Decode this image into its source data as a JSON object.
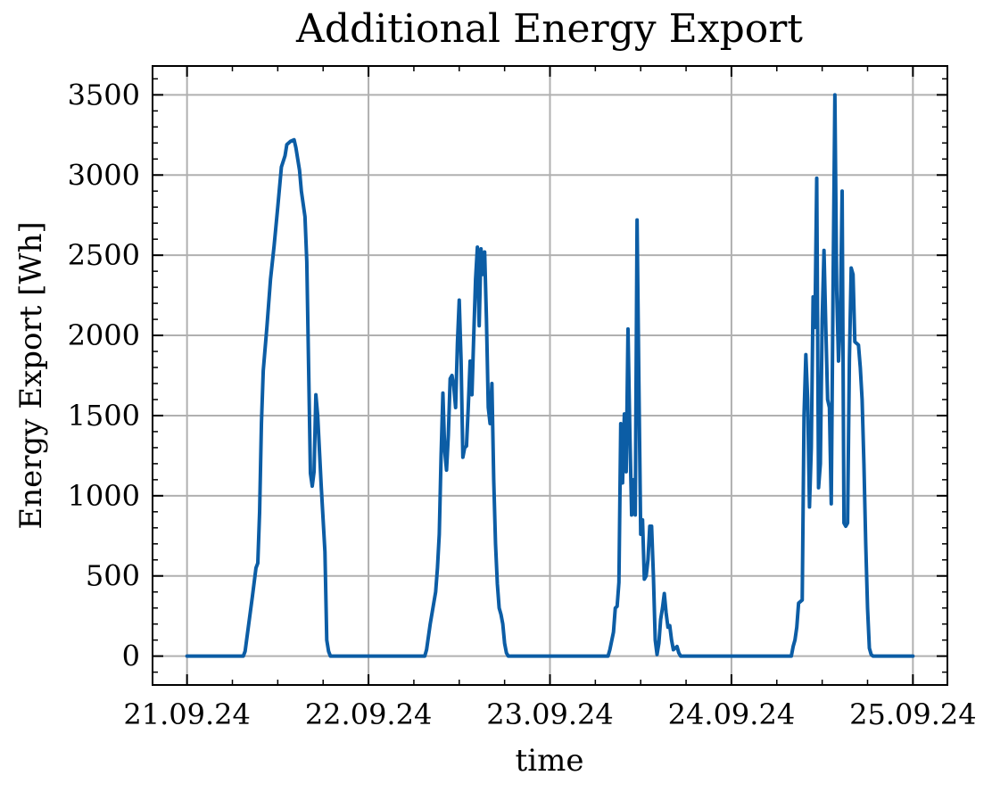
{
  "chart_data": {
    "type": "line",
    "title": "Additional Energy Export",
    "xlabel": "time",
    "ylabel": "Energy Export [Wh]",
    "x_unit": "days since 21.09.24 00:00",
    "xlim": [
      -0.19,
      4.19
    ],
    "ylim": [
      -180,
      3680
    ],
    "x_ticks": [
      {
        "value": 0,
        "label": "21.09.24"
      },
      {
        "value": 1,
        "label": "22.09.24"
      },
      {
        "value": 2,
        "label": "23.09.24"
      },
      {
        "value": 3,
        "label": "24.09.24"
      },
      {
        "value": 4,
        "label": "25.09.24"
      }
    ],
    "y_ticks": [
      {
        "value": 0,
        "label": "0"
      },
      {
        "value": 500,
        "label": "500"
      },
      {
        "value": 1000,
        "label": "1000"
      },
      {
        "value": 1500,
        "label": "1500"
      },
      {
        "value": 2000,
        "label": "2000"
      },
      {
        "value": 2500,
        "label": "2500"
      },
      {
        "value": 3000,
        "label": "3000"
      },
      {
        "value": 3500,
        "label": "3500"
      }
    ],
    "grid": true,
    "series": [
      {
        "color": "#0c5da5",
        "points": [
          [
            0.0,
            0
          ],
          [
            0.31,
            0
          ],
          [
            0.32,
            30
          ],
          [
            0.34,
            200
          ],
          [
            0.36,
            370
          ],
          [
            0.38,
            550
          ],
          [
            0.39,
            580
          ],
          [
            0.4,
            900
          ],
          [
            0.41,
            1450
          ],
          [
            0.42,
            1780
          ],
          [
            0.44,
            2050
          ],
          [
            0.46,
            2350
          ],
          [
            0.48,
            2560
          ],
          [
            0.5,
            2800
          ],
          [
            0.52,
            3050
          ],
          [
            0.54,
            3120
          ],
          [
            0.55,
            3190
          ],
          [
            0.57,
            3210
          ],
          [
            0.59,
            3220
          ],
          [
            0.6,
            3170
          ],
          [
            0.62,
            3030
          ],
          [
            0.63,
            2900
          ],
          [
            0.65,
            2740
          ],
          [
            0.66,
            2460
          ],
          [
            0.67,
            1800
          ],
          [
            0.68,
            1140
          ],
          [
            0.69,
            1060
          ],
          [
            0.7,
            1150
          ],
          [
            0.71,
            1630
          ],
          [
            0.72,
            1500
          ],
          [
            0.74,
            1050
          ],
          [
            0.76,
            650
          ],
          [
            0.77,
            100
          ],
          [
            0.78,
            30
          ],
          [
            0.79,
            0
          ],
          [
            1.31,
            0
          ],
          [
            1.32,
            40
          ],
          [
            1.34,
            200
          ],
          [
            1.37,
            400
          ],
          [
            1.38,
            550
          ],
          [
            1.39,
            760
          ],
          [
            1.4,
            1250
          ],
          [
            1.41,
            1640
          ],
          [
            1.42,
            1280
          ],
          [
            1.43,
            1160
          ],
          [
            1.44,
            1380
          ],
          [
            1.45,
            1730
          ],
          [
            1.46,
            1750
          ],
          [
            1.47,
            1680
          ],
          [
            1.48,
            1550
          ],
          [
            1.49,
            1950
          ],
          [
            1.5,
            2220
          ],
          [
            1.51,
            1850
          ],
          [
            1.52,
            1240
          ],
          [
            1.53,
            1300
          ],
          [
            1.54,
            1310
          ],
          [
            1.55,
            1560
          ],
          [
            1.56,
            1840
          ],
          [
            1.57,
            1630
          ],
          [
            1.58,
            2000
          ],
          [
            1.59,
            2350
          ],
          [
            1.6,
            2550
          ],
          [
            1.61,
            2060
          ],
          [
            1.62,
            2540
          ],
          [
            1.63,
            2380
          ],
          [
            1.64,
            2520
          ],
          [
            1.65,
            2100
          ],
          [
            1.66,
            1550
          ],
          [
            1.67,
            1450
          ],
          [
            1.68,
            1700
          ],
          [
            1.69,
            1100
          ],
          [
            1.7,
            700
          ],
          [
            1.71,
            450
          ],
          [
            1.72,
            300
          ],
          [
            1.73,
            260
          ],
          [
            1.74,
            200
          ],
          [
            1.75,
            80
          ],
          [
            1.76,
            20
          ],
          [
            1.77,
            0
          ],
          [
            2.32,
            0
          ],
          [
            2.33,
            40
          ],
          [
            2.35,
            150
          ],
          [
            2.36,
            300
          ],
          [
            2.37,
            310
          ],
          [
            2.38,
            460
          ],
          [
            2.39,
            1450
          ],
          [
            2.4,
            1080
          ],
          [
            2.41,
            1510
          ],
          [
            2.42,
            1150
          ],
          [
            2.43,
            2040
          ],
          [
            2.44,
            1400
          ],
          [
            2.45,
            880
          ],
          [
            2.46,
            1100
          ],
          [
            2.47,
            880
          ],
          [
            2.48,
            2720
          ],
          [
            2.49,
            1700
          ],
          [
            2.5,
            760
          ],
          [
            2.51,
            850
          ],
          [
            2.52,
            480
          ],
          [
            2.53,
            500
          ],
          [
            2.54,
            600
          ],
          [
            2.55,
            810
          ],
          [
            2.56,
            810
          ],
          [
            2.57,
            500
          ],
          [
            2.58,
            100
          ],
          [
            2.59,
            10
          ],
          [
            2.6,
            80
          ],
          [
            2.61,
            230
          ],
          [
            2.62,
            300
          ],
          [
            2.63,
            390
          ],
          [
            2.64,
            270
          ],
          [
            2.65,
            180
          ],
          [
            2.66,
            190
          ],
          [
            2.67,
            100
          ],
          [
            2.68,
            40
          ],
          [
            2.69,
            50
          ],
          [
            2.7,
            60
          ],
          [
            2.71,
            20
          ],
          [
            2.72,
            0
          ],
          [
            3.33,
            0
          ],
          [
            3.34,
            60
          ],
          [
            3.35,
            100
          ],
          [
            3.36,
            180
          ],
          [
            3.37,
            330
          ],
          [
            3.38,
            340
          ],
          [
            3.39,
            350
          ],
          [
            3.4,
            1500
          ],
          [
            3.41,
            1880
          ],
          [
            3.42,
            1600
          ],
          [
            3.43,
            930
          ],
          [
            3.44,
            1300
          ],
          [
            3.45,
            2240
          ],
          [
            3.46,
            2050
          ],
          [
            3.47,
            2980
          ],
          [
            3.48,
            1050
          ],
          [
            3.49,
            1200
          ],
          [
            3.5,
            2100
          ],
          [
            3.51,
            2530
          ],
          [
            3.52,
            2050
          ],
          [
            3.53,
            1600
          ],
          [
            3.54,
            1550
          ],
          [
            3.55,
            950
          ],
          [
            3.56,
            2300
          ],
          [
            3.57,
            3500
          ],
          [
            3.58,
            2280
          ],
          [
            3.59,
            1840
          ],
          [
            3.6,
            2100
          ],
          [
            3.61,
            2900
          ],
          [
            3.62,
            830
          ],
          [
            3.63,
            810
          ],
          [
            3.64,
            830
          ],
          [
            3.65,
            1850
          ],
          [
            3.66,
            2420
          ],
          [
            3.67,
            2380
          ],
          [
            3.68,
            1960
          ],
          [
            3.69,
            1950
          ],
          [
            3.7,
            1940
          ],
          [
            3.71,
            1800
          ],
          [
            3.72,
            1600
          ],
          [
            3.73,
            1200
          ],
          [
            3.74,
            700
          ],
          [
            3.75,
            300
          ],
          [
            3.76,
            50
          ],
          [
            3.77,
            10
          ],
          [
            3.78,
            0
          ],
          [
            4.0,
            0
          ]
        ]
      }
    ]
  }
}
